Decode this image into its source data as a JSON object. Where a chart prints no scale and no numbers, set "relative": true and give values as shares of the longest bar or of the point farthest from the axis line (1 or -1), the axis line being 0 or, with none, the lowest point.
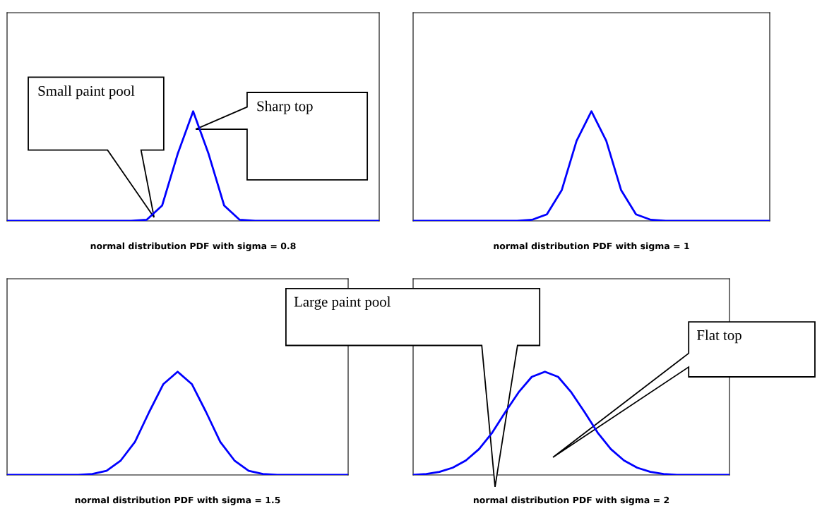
{
  "chart_data": [
    {
      "type": "line",
      "relative": true,
      "xlabel": "normal distribution PDF with sigma = 0.8",
      "categories": [
        null,
        null,
        null,
        null,
        null,
        null,
        null,
        null,
        null,
        null,
        null,
        null,
        null,
        null,
        null,
        null,
        null,
        null,
        null,
        null,
        null,
        null,
        null,
        null,
        null
      ],
      "series": [
        {
          "color": "#0000ff",
          "values": [
            0,
            0,
            0,
            0,
            0,
            0,
            0,
            0,
            0,
            0.01,
            0.14,
            0.61,
            1,
            0.61,
            0.14,
            0.01,
            0,
            0,
            0,
            0,
            0,
            0,
            0,
            0,
            0
          ]
        }
      ],
      "annotations": [
        "Small paint pool",
        "Sharp top"
      ]
    },
    {
      "type": "line",
      "relative": true,
      "xlabel": "normal distribution PDF with sigma = 1",
      "categories": [
        null,
        null,
        null,
        null,
        null,
        null,
        null,
        null,
        null,
        null,
        null,
        null,
        null,
        null,
        null,
        null,
        null,
        null,
        null,
        null,
        null,
        null,
        null,
        null,
        null
      ],
      "series": [
        {
          "color": "#0000ff",
          "values": [
            0,
            0,
            0,
            0,
            0,
            0,
            0,
            0,
            0.01,
            0.06,
            0.28,
            0.73,
            1,
            0.73,
            0.28,
            0.06,
            0.01,
            0,
            0,
            0,
            0,
            0,
            0,
            0,
            0
          ]
        }
      ]
    },
    {
      "type": "line",
      "relative": true,
      "xlabel": "normal distribution PDF with sigma = 1.5",
      "categories": [
        null,
        null,
        null,
        null,
        null,
        null,
        null,
        null,
        null,
        null,
        null,
        null,
        null,
        null,
        null,
        null,
        null,
        null,
        null,
        null,
        null,
        null,
        null,
        null,
        null
      ],
      "series": [
        {
          "color": "#0000ff",
          "values": [
            0,
            0,
            0,
            0,
            0,
            0,
            0.01,
            0.04,
            0.14,
            0.32,
            0.61,
            0.88,
            1,
            0.88,
            0.61,
            0.32,
            0.14,
            0.04,
            0.01,
            0,
            0,
            0,
            0,
            0,
            0
          ]
        }
      ]
    },
    {
      "type": "line",
      "relative": true,
      "xlabel": "normal distribution PDF with sigma = 2",
      "categories": [
        null,
        null,
        null,
        null,
        null,
        null,
        null,
        null,
        null,
        null,
        null,
        null,
        null,
        null,
        null,
        null,
        null,
        null,
        null,
        null,
        null,
        null,
        null,
        null,
        null
      ],
      "series": [
        {
          "color": "#0000ff",
          "values": [
            0,
            0.01,
            0.03,
            0.07,
            0.14,
            0.25,
            0.41,
            0.61,
            0.8,
            0.95,
            1,
            0.95,
            0.8,
            0.61,
            0.41,
            0.25,
            0.14,
            0.07,
            0.03,
            0.01,
            0,
            0,
            0,
            0,
            0
          ]
        }
      ],
      "annotations": [
        "Large paint pool",
        "Flat top"
      ]
    }
  ]
}
